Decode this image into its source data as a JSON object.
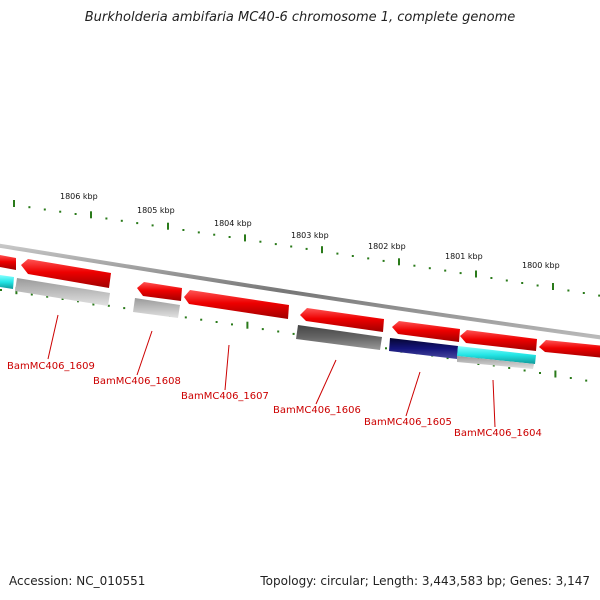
{
  "title": "Burkholderia ambifaria MC40-6 chromosome 1, complete genome",
  "footer": {
    "accession": "Accession: NC_010551",
    "summary": "Topology: circular; Length: 3,443,583 bp; Genes: 3,147"
  },
  "colors": {
    "backbone": "#888888",
    "tick": "#2a7a1a",
    "label": "#cc0000",
    "gene_red": "#ee0000",
    "gene_cyan": "#22e5e5",
    "gene_light_gray": "#b4b4b4",
    "gene_dark_gray": "#666666",
    "gene_navy": "#14147a"
  },
  "kbp_labels": [
    "1806 kbp",
    "1805 kbp",
    "1804 kbp",
    "1803 kbp",
    "1802 kbp",
    "1801 kbp",
    "1800 kbp"
  ],
  "gene_labels": [
    "BamMC406_1609",
    "BamMC406_1608",
    "BamMC406_1607",
    "BamMC406_1606",
    "BamMC406_1605",
    "BamMC406_1604"
  ]
}
